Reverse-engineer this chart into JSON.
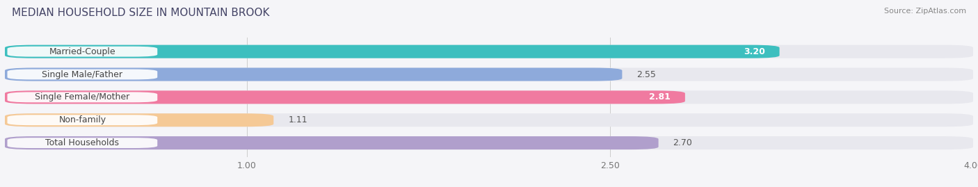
{
  "title": "MEDIAN HOUSEHOLD SIZE IN MOUNTAIN BROOK",
  "source": "Source: ZipAtlas.com",
  "categories": [
    "Married-Couple",
    "Single Male/Father",
    "Single Female/Mother",
    "Non-family",
    "Total Households"
  ],
  "values": [
    3.2,
    2.55,
    2.81,
    1.11,
    2.7
  ],
  "bar_colors": [
    "#3dbfbf",
    "#8eaadb",
    "#f07aa0",
    "#f5c996",
    "#b09fcc"
  ],
  "bar_bg_color": "#e8e8ee",
  "xlim": [
    0,
    4.0
  ],
  "xticks": [
    1.0,
    2.5,
    4.0
  ],
  "value_inside": [
    true,
    false,
    true,
    false,
    false
  ],
  "background_color": "#f5f5f8",
  "bar_height": 0.58,
  "title_fontsize": 11,
  "source_fontsize": 8,
  "tick_fontsize": 9,
  "label_fontsize": 9,
  "value_fontsize": 9,
  "label_text_color": "#444444",
  "value_inside_color": "#ffffff",
  "value_outside_color": "#555555"
}
